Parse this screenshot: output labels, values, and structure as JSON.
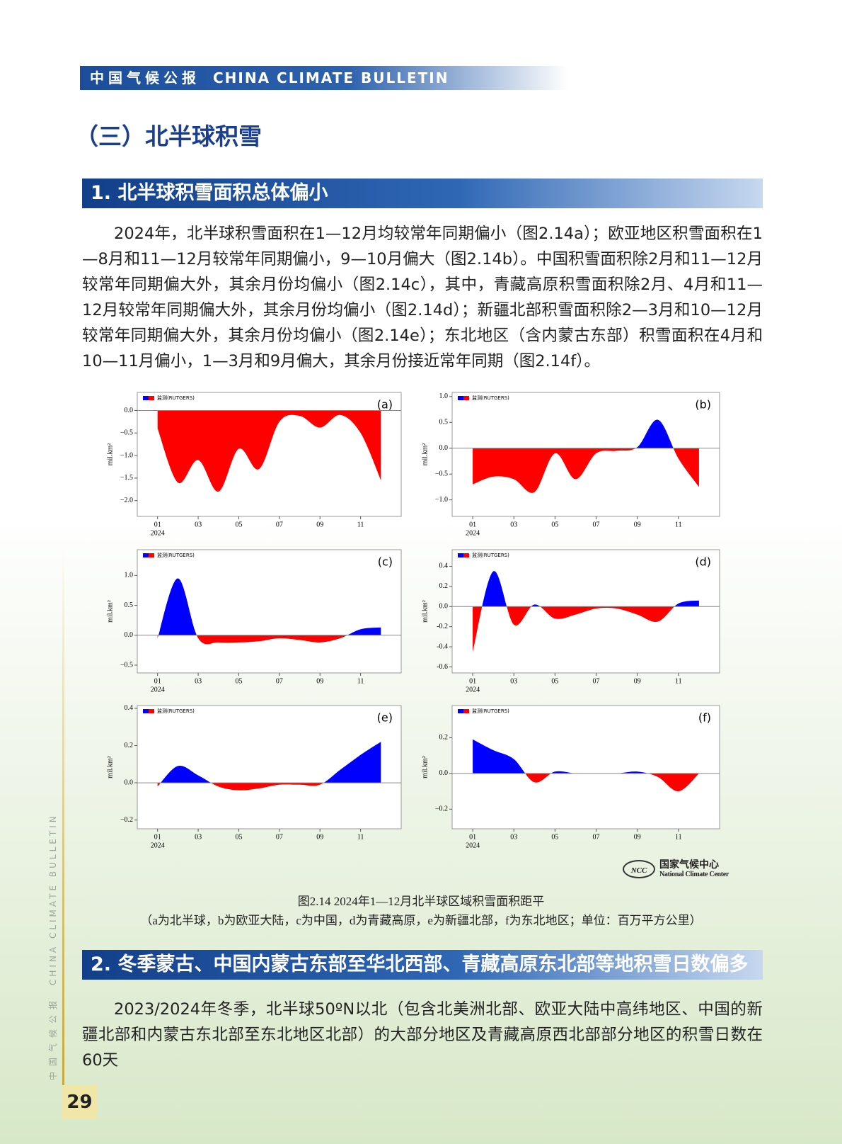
{
  "header": {
    "title_cn": "中国气候公报",
    "title_en": "CHINA CLIMATE BULLETIN"
  },
  "section_title": "（三）北半球积雪",
  "subsections": [
    {
      "heading": "1. 北半球积雪面积总体偏小",
      "paragraph": "2024年，北半球积雪面积在1—12月均较常年同期偏小（图2.14a）；欧亚地区积雪面积在1—8月和11—12月较常年同期偏小，9—10月偏大（图2.14b）。中国积雪面积除2月和11—12月较常年同期偏大外，其余月份均偏小（图2.14c），其中，青藏高原积雪面积除2月、4月和11—12月较常年同期偏大外，其余月份均偏小（图2.14d）；新疆北部积雪面积除2—3月和10—12月较常年同期偏大外，其余月份均偏小（图2.14e）；东北地区（含内蒙古东部）积雪面积在4月和10—11月偏小，1—3月和9月偏大，其余月份接近常年同期（图2.14f）。"
    },
    {
      "heading": "2. 冬季蒙古、中国内蒙古东部至华北西部、青藏高原东北部等地积雪日数偏多",
      "paragraph": "2023/2024年冬季，北半球50ºN以北（包含北美洲北部、欧亚大陆中高纬地区、中国的新疆北部和内蒙古东北部至东北地区北部）的大部分地区及青藏高原西北部部分地区的积雪日数在60天"
    }
  ],
  "chart_data": [
    {
      "type": "area",
      "panel_label": "(a)",
      "ylabel": "mil.km²",
      "x_sub_label": "2024",
      "x": [
        1,
        2,
        3,
        4,
        5,
        6,
        7,
        8,
        9,
        10,
        11,
        12
      ],
      "xlim": [
        0,
        13
      ],
      "xticks": [
        {
          "value": 1,
          "label": "01"
        },
        {
          "value": 3,
          "label": "03"
        },
        {
          "value": 5,
          "label": "05"
        },
        {
          "value": 7,
          "label": "07"
        },
        {
          "value": 9,
          "label": "09"
        },
        {
          "value": 11,
          "label": "11"
        }
      ],
      "ylim": [
        -2.35,
        0.4
      ],
      "yticks": [
        {
          "value": 0,
          "label": "0.0"
        },
        {
          "value": -0.5,
          "label": "−0.5"
        },
        {
          "value": -1,
          "label": "−1.0"
        },
        {
          "value": -1.5,
          "label": "−1.5"
        },
        {
          "value": -2,
          "label": "−2.0"
        }
      ],
      "pos_color": "#0000ff",
      "neg_color": "#ff0000",
      "zero_line": true,
      "series": [
        {
          "name": "监测(RUTGERS)",
          "values": [
            -0.4,
            -1.6,
            -1.1,
            -1.8,
            -0.85,
            -1.3,
            -0.25,
            -0.12,
            -0.38,
            -0.1,
            -0.5,
            -1.55
          ]
        }
      ]
    },
    {
      "type": "area",
      "panel_label": "(b)",
      "ylabel": "mil.km²",
      "x_sub_label": "2024",
      "x": [
        1,
        2,
        3,
        4,
        5,
        6,
        7,
        8,
        9,
        10,
        11,
        12
      ],
      "xlim": [
        0,
        13
      ],
      "xticks": [
        {
          "value": 1,
          "label": "01"
        },
        {
          "value": 3,
          "label": "03"
        },
        {
          "value": 5,
          "label": "05"
        },
        {
          "value": 7,
          "label": "07"
        },
        {
          "value": 9,
          "label": "09"
        },
        {
          "value": 11,
          "label": "11"
        }
      ],
      "ylim": [
        -1.32,
        1.08
      ],
      "yticks": [
        {
          "value": 1,
          "label": "1.0"
        },
        0.5,
        {
          "value": 0,
          "label": "0.0"
        },
        {
          "value": -0.5,
          "label": "−0.5"
        },
        {
          "value": -1,
          "label": "−1.0"
        }
      ],
      "pos_color": "#0000ff",
      "neg_color": "#ff0000",
      "zero_line": true,
      "series": [
        {
          "name": "监测(RUTGERS)",
          "values": [
            -0.7,
            -0.55,
            -0.6,
            -0.85,
            -0.1,
            -0.6,
            -0.1,
            -0.05,
            0.02,
            0.55,
            -0.2,
            -0.75
          ]
        }
      ]
    },
    {
      "type": "area",
      "panel_label": "(c)",
      "ylabel": "mil.km²",
      "x_sub_label": "2024",
      "x": [
        1,
        2,
        3,
        4,
        5,
        6,
        7,
        8,
        9,
        10,
        11,
        12
      ],
      "xlim": [
        0,
        13
      ],
      "xticks": [
        {
          "value": 1,
          "label": "01"
        },
        {
          "value": 3,
          "label": "03"
        },
        {
          "value": 5,
          "label": "05"
        },
        {
          "value": 7,
          "label": "07"
        },
        {
          "value": 9,
          "label": "09"
        },
        {
          "value": 11,
          "label": "11"
        }
      ],
      "ylim": [
        -0.63,
        1.43
      ],
      "yticks": [
        {
          "value": 1,
          "label": "1.0"
        },
        0.5,
        {
          "value": 0,
          "label": "0.0"
        },
        {
          "value": -0.5,
          "label": "−0.5"
        }
      ],
      "pos_color": "#0000ff",
      "neg_color": "#ff0000",
      "zero_line": true,
      "series": [
        {
          "name": "监测(RUTGERS)",
          "values": [
            -0.05,
            0.95,
            -0.05,
            -0.12,
            -0.12,
            -0.1,
            -0.05,
            -0.08,
            -0.12,
            -0.05,
            0.1,
            0.13
          ]
        }
      ]
    },
    {
      "type": "area",
      "panel_label": "(d)",
      "ylabel": "mil.km²",
      "x_sub_label": "2024",
      "x": [
        1,
        2,
        3,
        4,
        5,
        6,
        7,
        8,
        9,
        10,
        11,
        12
      ],
      "xlim": [
        0,
        13
      ],
      "xticks": [
        {
          "value": 1,
          "label": "01"
        },
        {
          "value": 3,
          "label": "03"
        },
        {
          "value": 5,
          "label": "05"
        },
        {
          "value": 7,
          "label": "07"
        },
        {
          "value": 9,
          "label": "09"
        },
        {
          "value": 11,
          "label": "11"
        }
      ],
      "ylim": [
        -0.66,
        0.565
      ],
      "yticks": [
        0.4,
        0.2,
        {
          "value": 0,
          "label": "0.0"
        },
        -0.2,
        -0.4,
        -0.6
      ],
      "pos_color": "#0000ff",
      "neg_color": "#ff0000",
      "zero_line": true,
      "series": [
        {
          "name": "监测(RUTGERS)",
          "values": [
            -0.45,
            0.35,
            -0.18,
            0.02,
            -0.12,
            -0.08,
            -0.02,
            -0.02,
            -0.08,
            -0.15,
            0.03,
            0.06
          ]
        }
      ]
    },
    {
      "type": "area",
      "panel_label": "(e)",
      "ylabel": "mil.km²",
      "x_sub_label": "2024",
      "x": [
        1,
        2,
        3,
        4,
        5,
        6,
        7,
        8,
        9,
        10,
        11,
        12
      ],
      "xlim": [
        0,
        13
      ],
      "xticks": [
        {
          "value": 1,
          "label": "01"
        },
        {
          "value": 3,
          "label": "03"
        },
        {
          "value": 5,
          "label": "05"
        },
        {
          "value": 7,
          "label": "07"
        },
        {
          "value": 9,
          "label": "09"
        },
        {
          "value": 11,
          "label": "11"
        }
      ],
      "ylim": [
        -0.247,
        0.415
      ],
      "yticks": [
        0.4,
        0.2,
        {
          "value": 0,
          "label": "0.0"
        },
        {
          "value": -0.2,
          "label": "−0.2"
        }
      ],
      "pos_color": "#0000ff",
      "neg_color": "#ff0000",
      "zero_line": true,
      "series": [
        {
          "name": "监测(RUTGERS)",
          "values": [
            -0.02,
            0.09,
            0.04,
            -0.02,
            -0.04,
            -0.03,
            -0.01,
            -0.01,
            -0.01,
            0.07,
            0.15,
            0.22
          ]
        }
      ]
    },
    {
      "type": "area",
      "panel_label": "(f)",
      "ylabel": "mil.km²",
      "x_sub_label": "2024",
      "x": [
        1,
        2,
        3,
        4,
        5,
        6,
        7,
        8,
        9,
        10,
        11,
        12
      ],
      "xlim": [
        0,
        13
      ],
      "xticks": [
        {
          "value": 1,
          "label": "01"
        },
        {
          "value": 3,
          "label": "03"
        },
        {
          "value": 5,
          "label": "05"
        },
        {
          "value": 7,
          "label": "07"
        },
        {
          "value": 9,
          "label": "09"
        },
        {
          "value": 11,
          "label": "11"
        }
      ],
      "ylim": [
        -0.31,
        0.38
      ],
      "yticks": [
        0.2,
        {
          "value": 0,
          "label": "0.0"
        },
        {
          "value": -0.2,
          "label": "−0.2"
        }
      ],
      "pos_color": "#0000ff",
      "neg_color": "#ff0000",
      "zero_line": true,
      "series": [
        {
          "name": "监测(RUTGERS)",
          "values": [
            0.19,
            0.13,
            0.08,
            -0.05,
            0.01,
            0,
            0,
            0,
            0.01,
            -0.02,
            -0.1,
            0
          ]
        }
      ]
    }
  ],
  "figure": {
    "logo_abbr": "NCC",
    "logo_cn": "国家气候中心",
    "logo_en": "National Climate Center",
    "caption": "图2.14  2024年1—12月北半球区域积雪面积距平",
    "caption_note": "（a为北半球，b为欧亚大陆，c为中国，d为青藏高原，e为新疆北部，f为东北地区；单位：百万平方公里）"
  },
  "sidebar": {
    "text_cn": "中国气候公报",
    "text_en": "CHINA CLIMATE BULLETIN"
  },
  "page_number": 29
}
